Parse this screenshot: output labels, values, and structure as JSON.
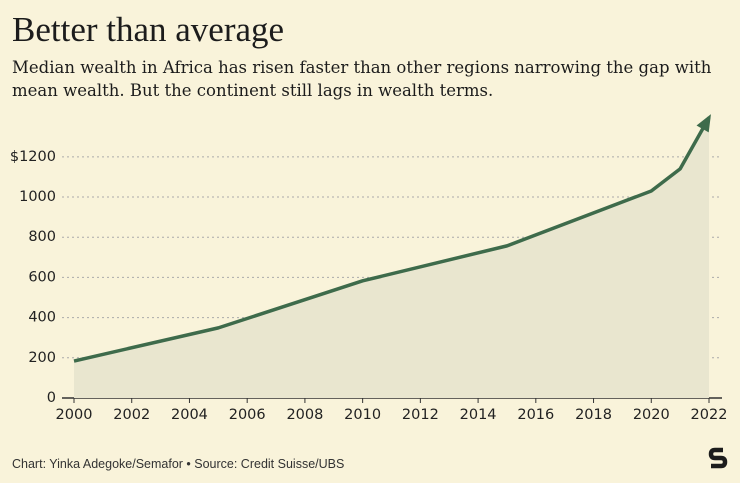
{
  "chart_data": {
    "type": "line",
    "title": "Better than average",
    "subtitle": "Median wealth in Africa has risen faster than other regions narrowing the gap with mean wealth. But the continent still lags in wealth terms.",
    "source": "Chart: Yinka Adegoke/Semafor • Source: Credit Suisse/UBS",
    "x": [
      2000,
      2005,
      2010,
      2015,
      2020,
      2021,
      2022
    ],
    "series": [
      {
        "name": "Median wealth in Africa",
        "color": "#3e6b4b",
        "values": [
          184,
          349,
          583,
          757,
          1030,
          1140,
          1395
        ]
      }
    ],
    "xlim": [
      2000,
      2022
    ],
    "xticks": [
      2000,
      2002,
      2004,
      2006,
      2008,
      2010,
      2012,
      2014,
      2016,
      2018,
      2020,
      2022
    ],
    "ylim": [
      0,
      1440
    ],
    "yticks": [
      0,
      200,
      400,
      600,
      800,
      1000,
      {
        "value": 1200,
        "label": "$1200"
      }
    ],
    "grid": true
  }
}
